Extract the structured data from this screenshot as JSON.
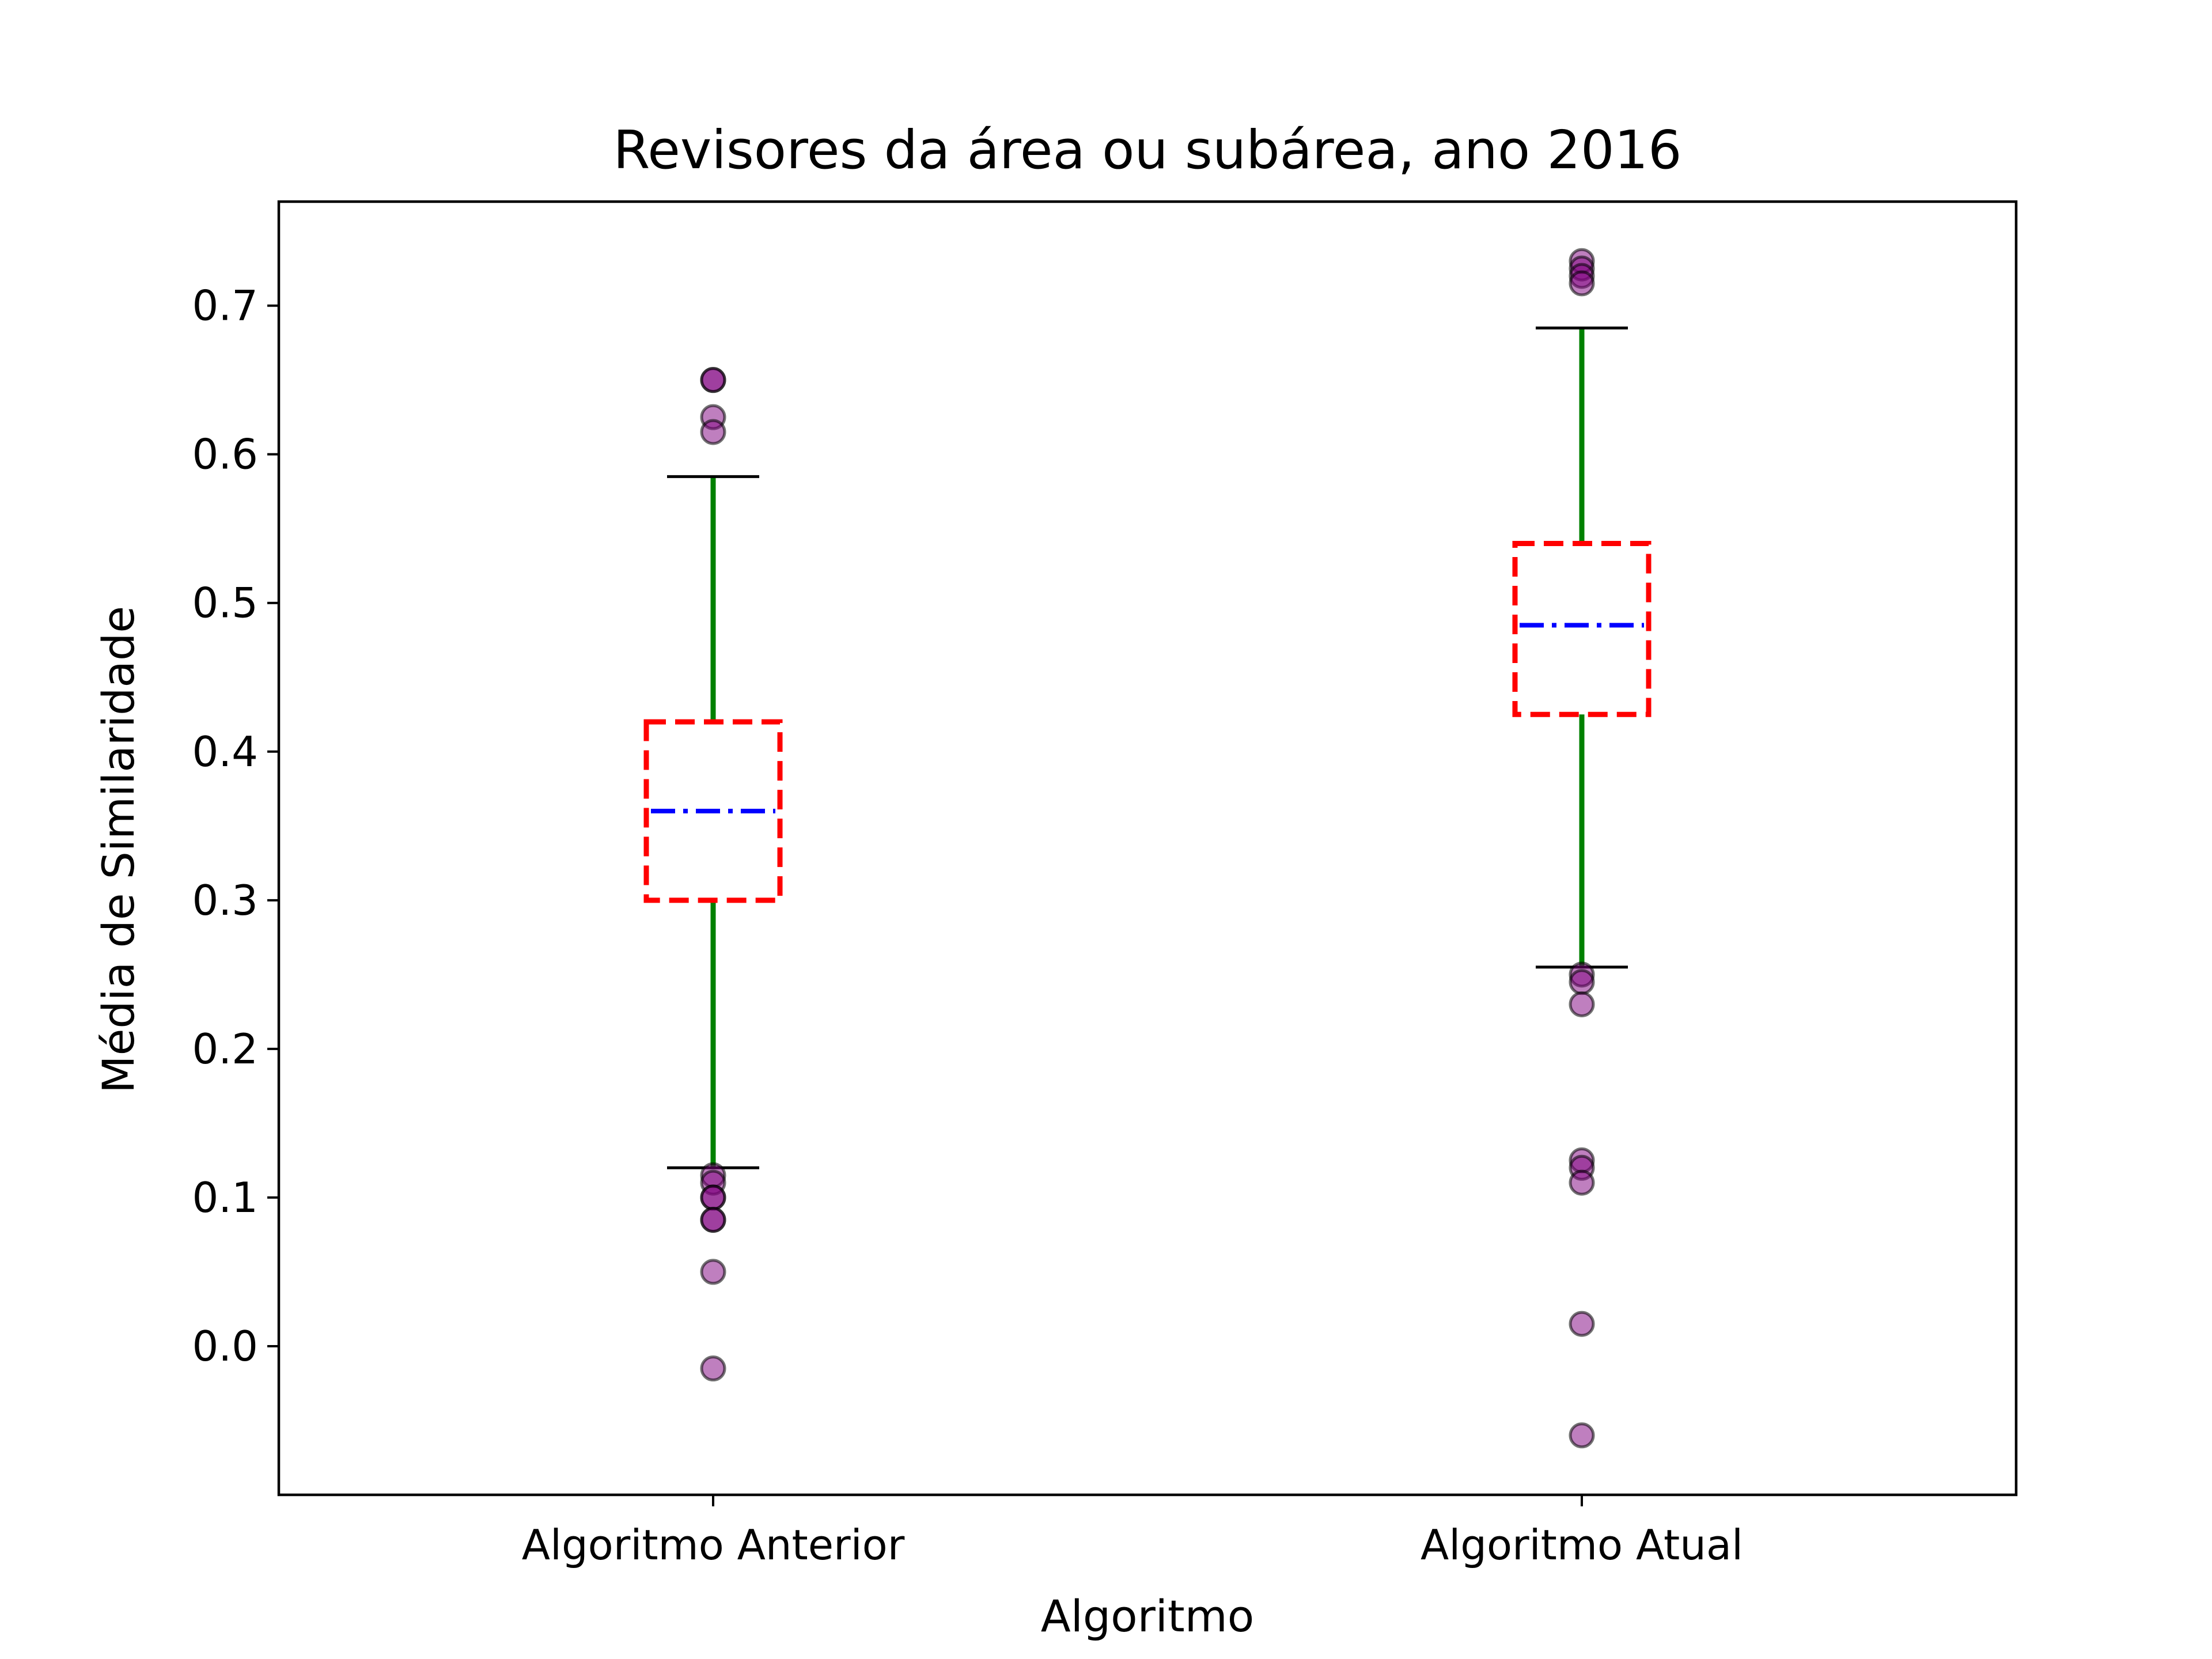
{
  "chart_data": {
    "type": "box",
    "title": "Revisores da área ou subárea, ano 2016",
    "xlabel": "Algoritmo",
    "ylabel": "Média de Similaridade",
    "ylim": [
      -0.1,
      0.77
    ],
    "yticks": [
      0.0,
      0.1,
      0.2,
      0.3,
      0.4,
      0.5,
      0.6,
      0.7
    ],
    "ytick_labels": [
      "0.0",
      "0.1",
      "0.2",
      "0.3",
      "0.4",
      "0.5",
      "0.6",
      "0.7"
    ],
    "categories": [
      "Algoritmo Anterior",
      "Algoritmo Atual"
    ],
    "boxes": [
      {
        "category": "Algoritmo Anterior",
        "whisker_low": 0.12,
        "q1": 0.3,
        "median": 0.36,
        "q3": 0.42,
        "whisker_high": 0.585,
        "outliers": [
          0.65,
          0.65,
          0.625,
          0.615,
          0.115,
          0.11,
          0.1,
          0.1,
          0.085,
          0.085,
          0.05,
          -0.015
        ]
      },
      {
        "category": "Algoritmo Atual",
        "whisker_low": 0.255,
        "q1": 0.425,
        "median": 0.485,
        "q3": 0.54,
        "whisker_high": 0.685,
        "outliers": [
          0.73,
          0.725,
          0.72,
          0.715,
          0.25,
          0.245,
          0.23,
          0.125,
          0.12,
          0.11,
          0.015,
          -0.06
        ]
      }
    ],
    "colors": {
      "box": "#ff0000",
      "median": "#0000ff",
      "whisker": "#008000",
      "cap": "#000000",
      "outlier_fill": "#800080",
      "outlier_edge": "#000000"
    },
    "grid": false,
    "legend": "none"
  }
}
